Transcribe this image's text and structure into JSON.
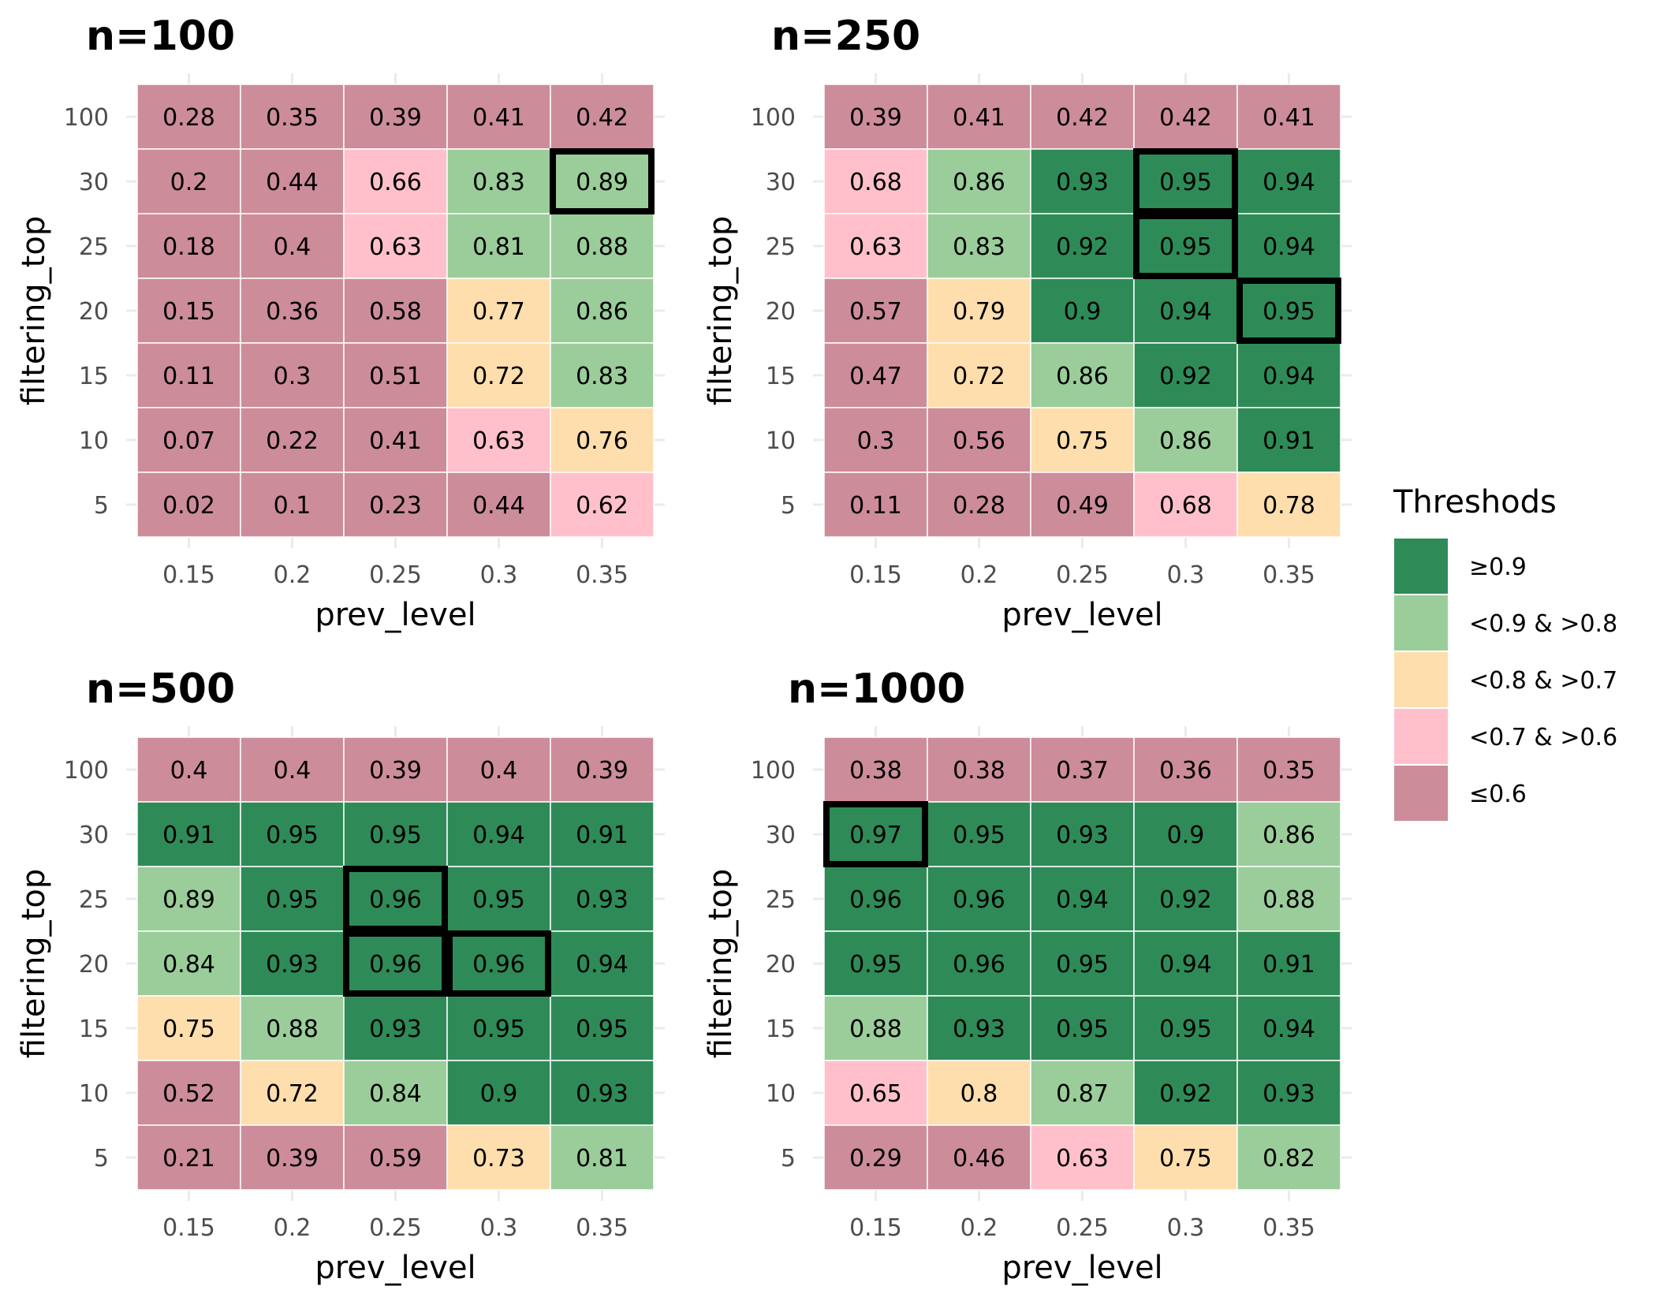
{
  "chart_data": {
    "type": "heatmap",
    "legend": {
      "title": "Threshods",
      "placement": "right",
      "entries": [
        {
          "key": "g90",
          "label": "≥0.9",
          "color": "#2E8B57"
        },
        {
          "key": "g80",
          "label": "<0.9 & >0.8",
          "color": "#9ACD9A"
        },
        {
          "key": "g70",
          "label": "<0.8 & >0.7",
          "color": "#FFDEAD"
        },
        {
          "key": "g60",
          "label": "<0.7 & >0.6",
          "color": "#FFC0CB"
        },
        {
          "key": "le60",
          "label": "≤0.6",
          "color": "#CD8C9A"
        }
      ]
    },
    "panels": [
      {
        "title": "n=100",
        "xlabel": "prev_level",
        "ylabel": "filtering_top",
        "x": [
          "0.15",
          "0.2",
          "0.25",
          "0.3",
          "0.35"
        ],
        "y": [
          "100",
          "30",
          "25",
          "20",
          "15",
          "10",
          "5"
        ],
        "values": [
          [
            "0.28",
            "0.35",
            "0.39",
            "0.41",
            "0.42"
          ],
          [
            "0.2",
            "0.44",
            "0.66",
            "0.83",
            "0.89"
          ],
          [
            "0.18",
            "0.4",
            "0.63",
            "0.81",
            "0.88"
          ],
          [
            "0.15",
            "0.36",
            "0.58",
            "0.77",
            "0.86"
          ],
          [
            "0.11",
            "0.3",
            "0.51",
            "0.72",
            "0.83"
          ],
          [
            "0.07",
            "0.22",
            "0.41",
            "0.63",
            "0.76"
          ],
          [
            "0.02",
            "0.1",
            "0.23",
            "0.44",
            "0.62"
          ]
        ],
        "categories": [
          [
            "le60",
            "le60",
            "le60",
            "le60",
            "le60"
          ],
          [
            "le60",
            "le60",
            "g60",
            "g80",
            "g80"
          ],
          [
            "le60",
            "le60",
            "g60",
            "g80",
            "g80"
          ],
          [
            "le60",
            "le60",
            "le60",
            "g70",
            "g80"
          ],
          [
            "le60",
            "le60",
            "le60",
            "g70",
            "g80"
          ],
          [
            "le60",
            "le60",
            "le60",
            "g60",
            "g70"
          ],
          [
            "le60",
            "le60",
            "le60",
            "le60",
            "g60"
          ]
        ],
        "highlighted": [
          [
            1,
            4
          ]
        ]
      },
      {
        "title": "n=250",
        "xlabel": "prev_level",
        "ylabel": "filtering_top",
        "x": [
          "0.15",
          "0.2",
          "0.25",
          "0.3",
          "0.35"
        ],
        "y": [
          "100",
          "30",
          "25",
          "20",
          "15",
          "10",
          "5"
        ],
        "values": [
          [
            "0.39",
            "0.41",
            "0.42",
            "0.42",
            "0.41"
          ],
          [
            "0.68",
            "0.86",
            "0.93",
            "0.95",
            "0.94"
          ],
          [
            "0.63",
            "0.83",
            "0.92",
            "0.95",
            "0.94"
          ],
          [
            "0.57",
            "0.79",
            "0.9",
            "0.94",
            "0.95"
          ],
          [
            "0.47",
            "0.72",
            "0.86",
            "0.92",
            "0.94"
          ],
          [
            "0.3",
            "0.56",
            "0.75",
            "0.86",
            "0.91"
          ],
          [
            "0.11",
            "0.28",
            "0.49",
            "0.68",
            "0.78"
          ]
        ],
        "categories": [
          [
            "le60",
            "le60",
            "le60",
            "le60",
            "le60"
          ],
          [
            "g60",
            "g80",
            "g90",
            "g90",
            "g90"
          ],
          [
            "g60",
            "g80",
            "g90",
            "g90",
            "g90"
          ],
          [
            "le60",
            "g70",
            "g90",
            "g90",
            "g90"
          ],
          [
            "le60",
            "g70",
            "g80",
            "g90",
            "g90"
          ],
          [
            "le60",
            "le60",
            "g70",
            "g80",
            "g90"
          ],
          [
            "le60",
            "le60",
            "le60",
            "g60",
            "g70"
          ]
        ],
        "highlighted": [
          [
            1,
            3
          ],
          [
            2,
            3
          ],
          [
            3,
            4
          ]
        ]
      },
      {
        "title": "n=500",
        "xlabel": "prev_level",
        "ylabel": "filtering_top",
        "x": [
          "0.15",
          "0.2",
          "0.25",
          "0.3",
          "0.35"
        ],
        "y": [
          "100",
          "30",
          "25",
          "20",
          "15",
          "10",
          "5"
        ],
        "values": [
          [
            "0.4",
            "0.4",
            "0.39",
            "0.4",
            "0.39"
          ],
          [
            "0.91",
            "0.95",
            "0.95",
            "0.94",
            "0.91"
          ],
          [
            "0.89",
            "0.95",
            "0.96",
            "0.95",
            "0.93"
          ],
          [
            "0.84",
            "0.93",
            "0.96",
            "0.96",
            "0.94"
          ],
          [
            "0.75",
            "0.88",
            "0.93",
            "0.95",
            "0.95"
          ],
          [
            "0.52",
            "0.72",
            "0.84",
            "0.9",
            "0.93"
          ],
          [
            "0.21",
            "0.39",
            "0.59",
            "0.73",
            "0.81"
          ]
        ],
        "categories": [
          [
            "le60",
            "le60",
            "le60",
            "le60",
            "le60"
          ],
          [
            "g90",
            "g90",
            "g90",
            "g90",
            "g90"
          ],
          [
            "g80",
            "g90",
            "g90",
            "g90",
            "g90"
          ],
          [
            "g80",
            "g90",
            "g90",
            "g90",
            "g90"
          ],
          [
            "g70",
            "g80",
            "g90",
            "g90",
            "g90"
          ],
          [
            "le60",
            "g70",
            "g80",
            "g90",
            "g90"
          ],
          [
            "le60",
            "le60",
            "le60",
            "g70",
            "g80"
          ]
        ],
        "highlighted": [
          [
            2,
            2
          ],
          [
            3,
            2
          ],
          [
            3,
            3
          ]
        ]
      },
      {
        "title": "n=1000",
        "xlabel": "prev_level",
        "ylabel": "filtering_top",
        "x": [
          "0.15",
          "0.2",
          "0.25",
          "0.3",
          "0.35"
        ],
        "y": [
          "100",
          "30",
          "25",
          "20",
          "15",
          "10",
          "5"
        ],
        "values": [
          [
            "0.38",
            "0.38",
            "0.37",
            "0.36",
            "0.35"
          ],
          [
            "0.97",
            "0.95",
            "0.93",
            "0.9",
            "0.86"
          ],
          [
            "0.96",
            "0.96",
            "0.94",
            "0.92",
            "0.88"
          ],
          [
            "0.95",
            "0.96",
            "0.95",
            "0.94",
            "0.91"
          ],
          [
            "0.88",
            "0.93",
            "0.95",
            "0.95",
            "0.94"
          ],
          [
            "0.65",
            "0.8",
            "0.87",
            "0.92",
            "0.93"
          ],
          [
            "0.29",
            "0.46",
            "0.63",
            "0.75",
            "0.82"
          ]
        ],
        "categories": [
          [
            "le60",
            "le60",
            "le60",
            "le60",
            "le60"
          ],
          [
            "g90",
            "g90",
            "g90",
            "g90",
            "g80"
          ],
          [
            "g90",
            "g90",
            "g90",
            "g90",
            "g80"
          ],
          [
            "g90",
            "g90",
            "g90",
            "g90",
            "g90"
          ],
          [
            "g80",
            "g90",
            "g90",
            "g90",
            "g90"
          ],
          [
            "g60",
            "g70",
            "g80",
            "g90",
            "g90"
          ],
          [
            "le60",
            "le60",
            "g60",
            "g70",
            "g80"
          ]
        ],
        "highlighted": [
          [
            1,
            0
          ]
        ]
      }
    ]
  }
}
